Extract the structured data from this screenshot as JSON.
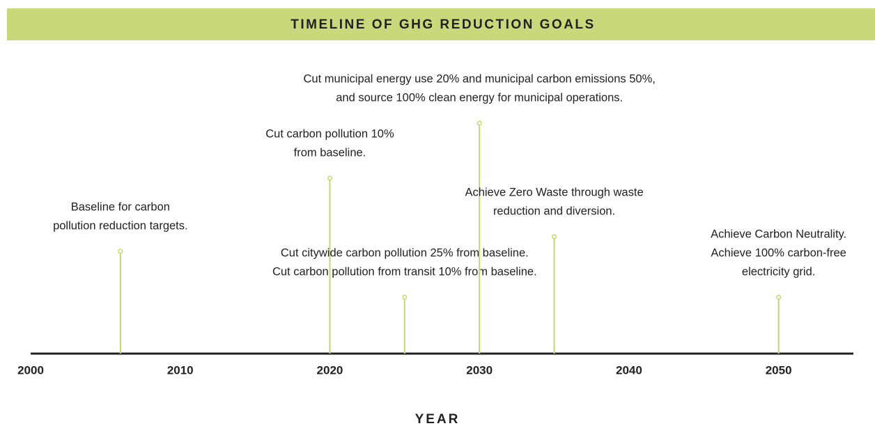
{
  "chart_data": {
    "type": "timeline",
    "title": "TIMELINE OF GHG REDUCTION GOALS",
    "xlabel": "YEAR",
    "x": [
      2006,
      2020,
      2025,
      2030,
      2035,
      2050
    ],
    "labels": [
      [
        "Baseline for carbon",
        "pollution reduction targets."
      ],
      [
        "Cut carbon pollution 10%",
        "from baseline."
      ],
      [
        "Cut citywide carbon pollution 25% from baseline.",
        "Cut carbon pollution from transit 10% from baseline."
      ],
      [
        "Cut municipal energy use 20% and municipal carbon emissions 50%,",
        "and source 100% clean energy for municipal operations."
      ],
      [
        "Achieve Zero Waste through waste",
        "reduction and diversion."
      ],
      [
        "Achieve Carbon Neutrality.",
        "Achieve 100% carbon-free",
        "electricity grid."
      ]
    ],
    "xlim": [
      2000,
      2055
    ],
    "xticks": [
      2000,
      2010,
      2020,
      2030,
      2040,
      2050
    ],
    "color": "#c5d86d",
    "band_color": "#c8d87a"
  }
}
